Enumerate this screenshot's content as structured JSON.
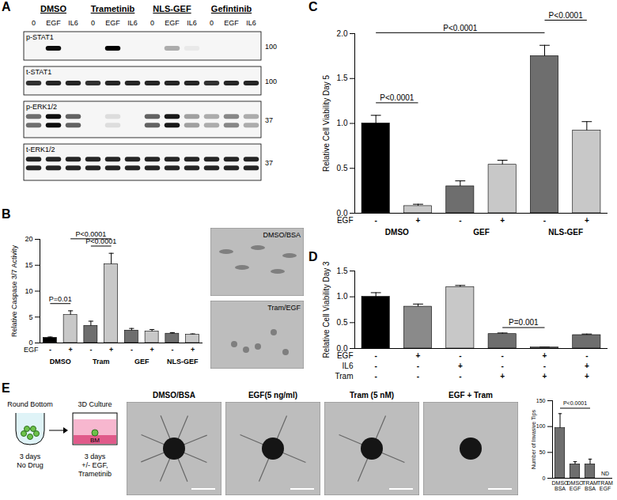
{
  "figure": {
    "panels": [
      "A",
      "B",
      "C",
      "D",
      "E"
    ]
  },
  "blot": {
    "groups": [
      "DMSO",
      "Trametinib",
      "NLS-GEF",
      "Gefintinib"
    ],
    "lanes": [
      "0",
      "EGF",
      "IL6"
    ],
    "rows": [
      {
        "name": "p-STAT1",
        "mw": 100,
        "bands": 1,
        "intensity": [
          0,
          0.95,
          0,
          0,
          1,
          0,
          0,
          0.3,
          0.05,
          0,
          0,
          0
        ]
      },
      {
        "name": "t-STAT1",
        "mw": 100,
        "bands": 1,
        "intensity": [
          0.8,
          0.85,
          0.85,
          0.8,
          0.85,
          0.85,
          0.85,
          0.85,
          0.85,
          0.8,
          0.85,
          0.85
        ]
      },
      {
        "name": "p-ERK1/2",
        "mw": 37,
        "bands": 2,
        "intensity": [
          0.55,
          0.95,
          0.6,
          0,
          0.1,
          0,
          0.6,
          0.9,
          0.35,
          0.3,
          0.45,
          0.3
        ]
      },
      {
        "name": "t-ERK1/2",
        "mw": 37,
        "bands": 2,
        "intensity": [
          0.85,
          0.85,
          0.85,
          0.85,
          0.85,
          0.85,
          0.85,
          0.85,
          0.85,
          0.85,
          0.85,
          0.85
        ]
      }
    ]
  },
  "images": {
    "B": [
      "DMSO/BSA",
      "Tram/EGF"
    ],
    "E": [
      "DMSO/BSA",
      "EGF(5 ng/ml)",
      "Tram (5 nM)",
      "EGF + Tram"
    ]
  },
  "schematic": [
    {
      "title": "Round Bottom",
      "caption": "3 days\nNo Drug"
    },
    {
      "title": "3D Culture",
      "medium": "BM",
      "caption": "3 days\n+/- EGF,\nTrametinib"
    }
  ],
  "chart_data": [
    {
      "type": "bar",
      "y_label": "Relative Caspase 3/7 Activity",
      "ylim": [
        0,
        20
      ],
      "yticks": [
        0,
        5,
        10,
        15,
        20
      ],
      "values": [
        1.0,
        5.4,
        3.3,
        15.2,
        2.4,
        2.2,
        1.8,
        1.6
      ],
      "errors": [
        0.15,
        0.8,
        0.9,
        2.1,
        0.4,
        0.4,
        0.2,
        0.15
      ],
      "colors": [
        "#000000",
        "#c8c8c8",
        "#6e6e6e",
        "#c8c8c8",
        "#6e6e6e",
        "#c8c8c8",
        "#6e6e6e",
        "#c8c8c8"
      ],
      "conditions": [
        {
          "name": "EGF",
          "values": [
            "-",
            "+",
            "-",
            "+",
            "-",
            "+",
            "-",
            "+"
          ]
        }
      ],
      "groups": [
        {
          "name": "DMSO",
          "from": 0,
          "to": 1
        },
        {
          "name": "Tram",
          "from": 2,
          "to": 3
        },
        {
          "name": "GEF",
          "from": 4,
          "to": 5
        },
        {
          "name": "NLS-GEF",
          "from": 6,
          "to": 7
        }
      ],
      "comparisons": [
        {
          "from": 0,
          "to": 1,
          "label": "P=0.01"
        },
        {
          "from": 2,
          "to": 3,
          "label": "P<0.0001"
        },
        {
          "from": 1,
          "to": 3,
          "label": "P<0.0001"
        }
      ]
    },
    {
      "type": "bar",
      "y_label": "Relative Cell Viability Day 5",
      "ylim": [
        0,
        2
      ],
      "yticks": [
        {
          "value": 0,
          "label": "0.0"
        },
        0.5,
        {
          "value": 1,
          "label": "1.0"
        },
        1.5,
        {
          "value": 2,
          "label": "2.0"
        }
      ],
      "values": [
        1.0,
        0.08,
        0.3,
        0.54,
        1.75,
        0.92
      ],
      "errors": [
        0.09,
        0.02,
        0.06,
        0.05,
        0.12,
        0.1
      ],
      "colors": [
        "#000000",
        "#c8c8c8",
        "#6e6e6e",
        "#c8c8c8",
        "#6e6e6e",
        "#c8c8c8"
      ],
      "conditions": [
        {
          "name": "EGF",
          "values": [
            "-",
            "+",
            "-",
            "+",
            "-",
            "+"
          ]
        }
      ],
      "groups": [
        {
          "name": "DMSO",
          "from": 0,
          "to": 1
        },
        {
          "name": "GEF",
          "from": 2,
          "to": 3
        },
        {
          "name": "NLS-GEF",
          "from": 4,
          "to": 5
        }
      ],
      "comparisons": [
        {
          "from": 0,
          "to": 1,
          "label": "P<0.0001"
        },
        {
          "from": 0,
          "to": 4,
          "label": "P<0.0001"
        },
        {
          "from": 4,
          "to": 5,
          "label": "P<0.0001"
        }
      ]
    },
    {
      "type": "bar",
      "y_label": "Relative Cell Viability Day 3",
      "ylim": [
        0,
        1.5
      ],
      "yticks": [
        {
          "value": 0,
          "label": "0.0"
        },
        0.5,
        {
          "value": 1,
          "label": "1.0"
        },
        1.5
      ],
      "values": [
        1.0,
        0.81,
        1.19,
        0.28,
        0.02,
        0.26
      ],
      "errors": [
        0.08,
        0.05,
        0.03,
        0.02,
        0.01,
        0.02
      ],
      "colors": [
        "#000000",
        "#8a8a8a",
        "#c8c8c8",
        "#6e6e6e",
        "#6e6e6e",
        "#6e6e6e"
      ],
      "conditions": [
        {
          "name": "EGF",
          "values": [
            "-",
            "+",
            "-",
            "-",
            "+",
            "-"
          ]
        },
        {
          "name": "IL6",
          "values": [
            "-",
            "-",
            "+",
            "-",
            "-",
            "+"
          ]
        },
        {
          "name": "Tram",
          "values": [
            "-",
            "-",
            "-",
            "+",
            "+",
            "+"
          ]
        }
      ],
      "comparisons": [
        {
          "from": 3,
          "to": 4,
          "label": "P=0.001"
        }
      ]
    },
    {
      "type": "bar",
      "y_label": "Number of Invasive Tips",
      "ylim": [
        0,
        150
      ],
      "yticks": [
        0,
        50,
        100,
        150
      ],
      "categories": [
        "DMSO\nBSA",
        "DMSO\nEGF",
        "TRAM\nBSA",
        "TRAM\nEGF"
      ],
      "values": [
        97,
        27,
        27,
        null
      ],
      "errors": [
        28,
        5,
        10,
        null
      ],
      "value_labels": [
        null,
        null,
        null,
        "ND"
      ],
      "colors": [
        "#6e6e6e",
        "#6e6e6e",
        "#6e6e6e",
        "#6e6e6e"
      ],
      "comparisons": [
        {
          "from": 0,
          "to": 2,
          "label": "P<0.0001"
        }
      ]
    }
  ]
}
